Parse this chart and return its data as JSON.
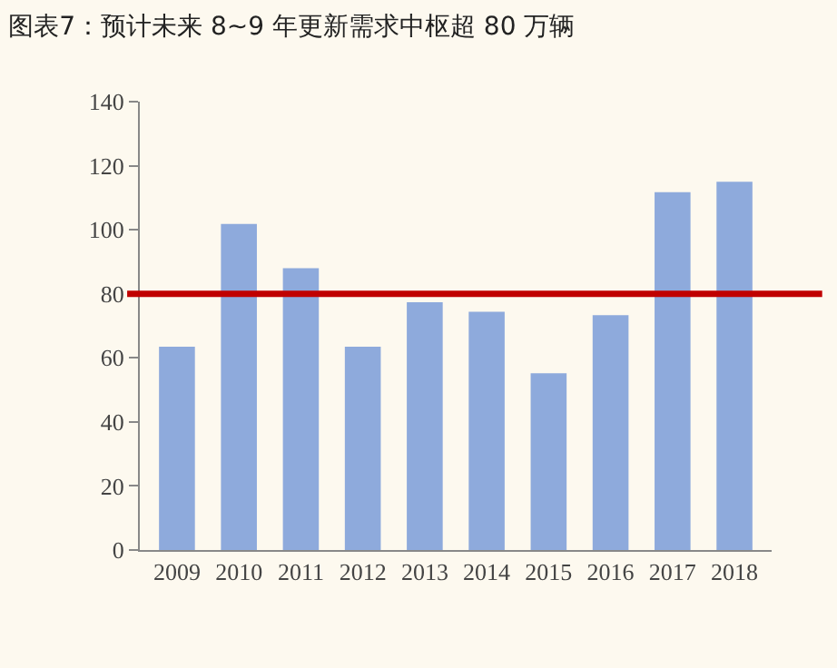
{
  "chart_data": {
    "type": "bar",
    "title": "图表7：预计未来 8~9 年更新需求中枢超 80 万辆",
    "categories": [
      "2009",
      "2010",
      "2011",
      "2012",
      "2013",
      "2014",
      "2015",
      "2016",
      "2017",
      "2018"
    ],
    "values": [
      63.5,
      101.8,
      88,
      63.5,
      77.4,
      74.4,
      55.2,
      73.3,
      111.7,
      115
    ],
    "color": "#8eaadc",
    "ylim": [
      0,
      140
    ],
    "yticks": [
      0,
      20,
      40,
      60,
      80,
      100,
      120,
      140
    ],
    "grid": false,
    "ref_lines": [
      {
        "axis": "y",
        "value": 80,
        "color": "#c00000"
      }
    ]
  }
}
